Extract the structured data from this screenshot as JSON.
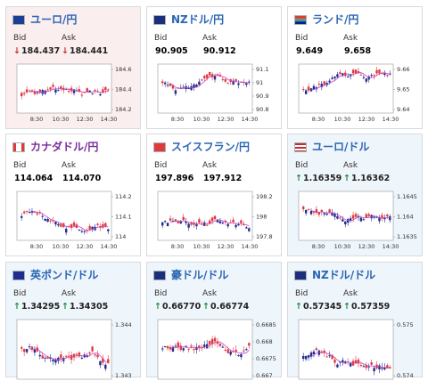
{
  "labels": {
    "bid": "Bid",
    "ask": "Ask"
  },
  "colors": {
    "title": "#2a66b4",
    "title_alt": "#7b2b9c",
    "up": "#1a8a3a",
    "down": "#c03030",
    "candle_up": "#e03a3a",
    "candle_down": "#1f2d8f",
    "ma": "#cc44cc"
  },
  "cards": [
    {
      "title": "ユーロ/円",
      "flag": "flag-eu-jp-icon",
      "bid": "184.437",
      "ask": "184.441",
      "bid_dir": "↓",
      "ask_dir": "↓",
      "ticks": [
        "184.6",
        "184.4",
        "184.2"
      ],
      "times": [
        "8:30",
        "10:30",
        "12:30",
        "14:30"
      ]
    },
    {
      "title": "NZドル/円",
      "flag": "flag-nz-jp-icon",
      "bid": "90.905",
      "ask": "90.912",
      "bid_dir": "",
      "ask_dir": "",
      "ticks": [
        "91.1",
        "91",
        "90.9",
        "90.8"
      ],
      "times": [
        "8:30",
        "10:30",
        "12:30",
        "14:30"
      ]
    },
    {
      "title": "ランド/円",
      "flag": "flag-za-jp-icon",
      "bid": "9.649",
      "ask": "9.658",
      "bid_dir": "",
      "ask_dir": "",
      "ticks": [
        "9.66",
        "9.65",
        "9.64"
      ],
      "times": [
        "8:30",
        "10:30",
        "12:30",
        "14:30"
      ]
    },
    {
      "title": "カナダドル/円",
      "flag": "flag-ca-jp-icon",
      "bid": "114.064",
      "ask": "114.070",
      "bid_dir": "",
      "ask_dir": "",
      "ticks": [
        "114.2",
        "114.1",
        "114"
      ],
      "times": [
        "8:30",
        "10:30",
        "12:30",
        "14:30"
      ]
    },
    {
      "title": "スイスフラン/円",
      "flag": "flag-ch-jp-icon",
      "bid": "197.896",
      "ask": "197.912",
      "bid_dir": "",
      "ask_dir": "",
      "ticks": [
        "198.2",
        "198",
        "197.8"
      ],
      "times": [
        "8:30",
        "10:30",
        "12:30",
        "14:30"
      ]
    },
    {
      "title": "ユーロ/ドル",
      "flag": "flag-eu-us-icon",
      "bid": "1.16359",
      "ask": "1.16362",
      "bid_dir": "↑",
      "ask_dir": "↑",
      "ticks": [
        "1.1645",
        "1.164",
        "1.1635"
      ],
      "times": [
        "8:30",
        "10:30",
        "12:30",
        "14:30"
      ]
    },
    {
      "title": "英ポンド/ドル",
      "flag": "flag-gb-us-icon",
      "bid": "1.34295",
      "ask": "1.34305",
      "bid_dir": "↑",
      "ask_dir": "↑",
      "ticks": [
        "1.344",
        "1.343"
      ],
      "times": []
    },
    {
      "title": "豪ドル/ドル",
      "flag": "flag-au-us-icon",
      "bid": "0.66770",
      "ask": "0.66774",
      "bid_dir": "↑",
      "ask_dir": "↑",
      "ticks": [
        "0.6685",
        "0.668",
        "0.6675",
        "0.667"
      ],
      "times": []
    },
    {
      "title": "NZドル/ドル",
      "flag": "flag-nz-us-icon",
      "bid": "0.57345",
      "ask": "0.57359",
      "bid_dir": "↑",
      "ask_dir": "↑",
      "ticks": [
        "0.575",
        "0.574"
      ],
      "times": []
    }
  ]
}
